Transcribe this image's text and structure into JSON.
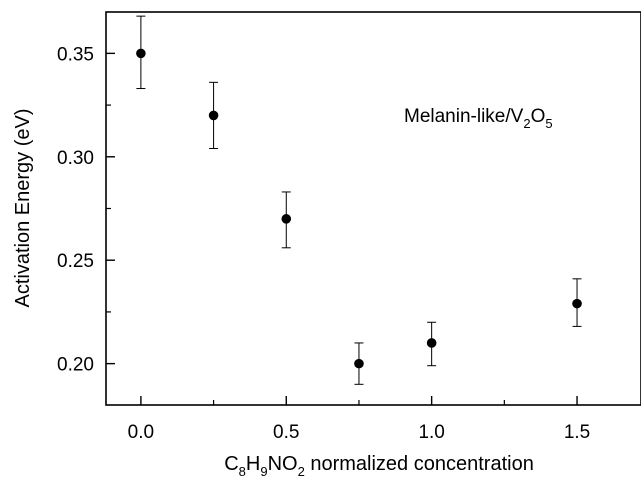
{
  "chart_data": {
    "type": "scatter",
    "title": "",
    "xlabel": {
      "parts": [
        {
          "text": "C",
          "sub": false
        },
        {
          "text": "8",
          "sub": true
        },
        {
          "text": "H",
          "sub": false
        },
        {
          "text": "9",
          "sub": true
        },
        {
          "text": "NO",
          "sub": false
        },
        {
          "text": "2",
          "sub": true
        },
        {
          "text": " normalized concentration",
          "sub": false
        }
      ]
    },
    "ylabel": "Activation Energy (eV)",
    "annotation": {
      "parts": [
        {
          "text": "Melanin-like/V",
          "sub": false
        },
        {
          "text": "2",
          "sub": true
        },
        {
          "text": "O",
          "sub": false
        },
        {
          "text": "5",
          "sub": true
        }
      ]
    },
    "xlim": [
      -0.12,
      1.72
    ],
    "ylim": [
      0.18,
      0.37
    ],
    "x_ticks": [
      0.0,
      0.5,
      1.0,
      1.5
    ],
    "x_tick_labels": [
      "0.0",
      "0.5",
      "1.0",
      "1.5"
    ],
    "x_minor_ticks": [
      0.25,
      0.75,
      1.25
    ],
    "y_ticks": [
      0.2,
      0.25,
      0.3,
      0.35
    ],
    "y_tick_labels": [
      "0.20",
      "0.25",
      "0.30",
      "0.35"
    ],
    "y_minor_ticks": [
      0.225,
      0.275,
      0.325
    ],
    "grid": false,
    "series": [
      {
        "x": [
          0.0,
          0.25,
          0.5,
          0.75,
          1.0,
          1.5
        ],
        "y": [
          0.35,
          0.32,
          0.27,
          0.2,
          0.21,
          0.229
        ],
        "err_low": [
          0.333,
          0.304,
          0.256,
          0.19,
          0.199,
          0.218
        ],
        "err_high": [
          0.368,
          0.336,
          0.283,
          0.21,
          0.22,
          0.241
        ]
      }
    ]
  }
}
